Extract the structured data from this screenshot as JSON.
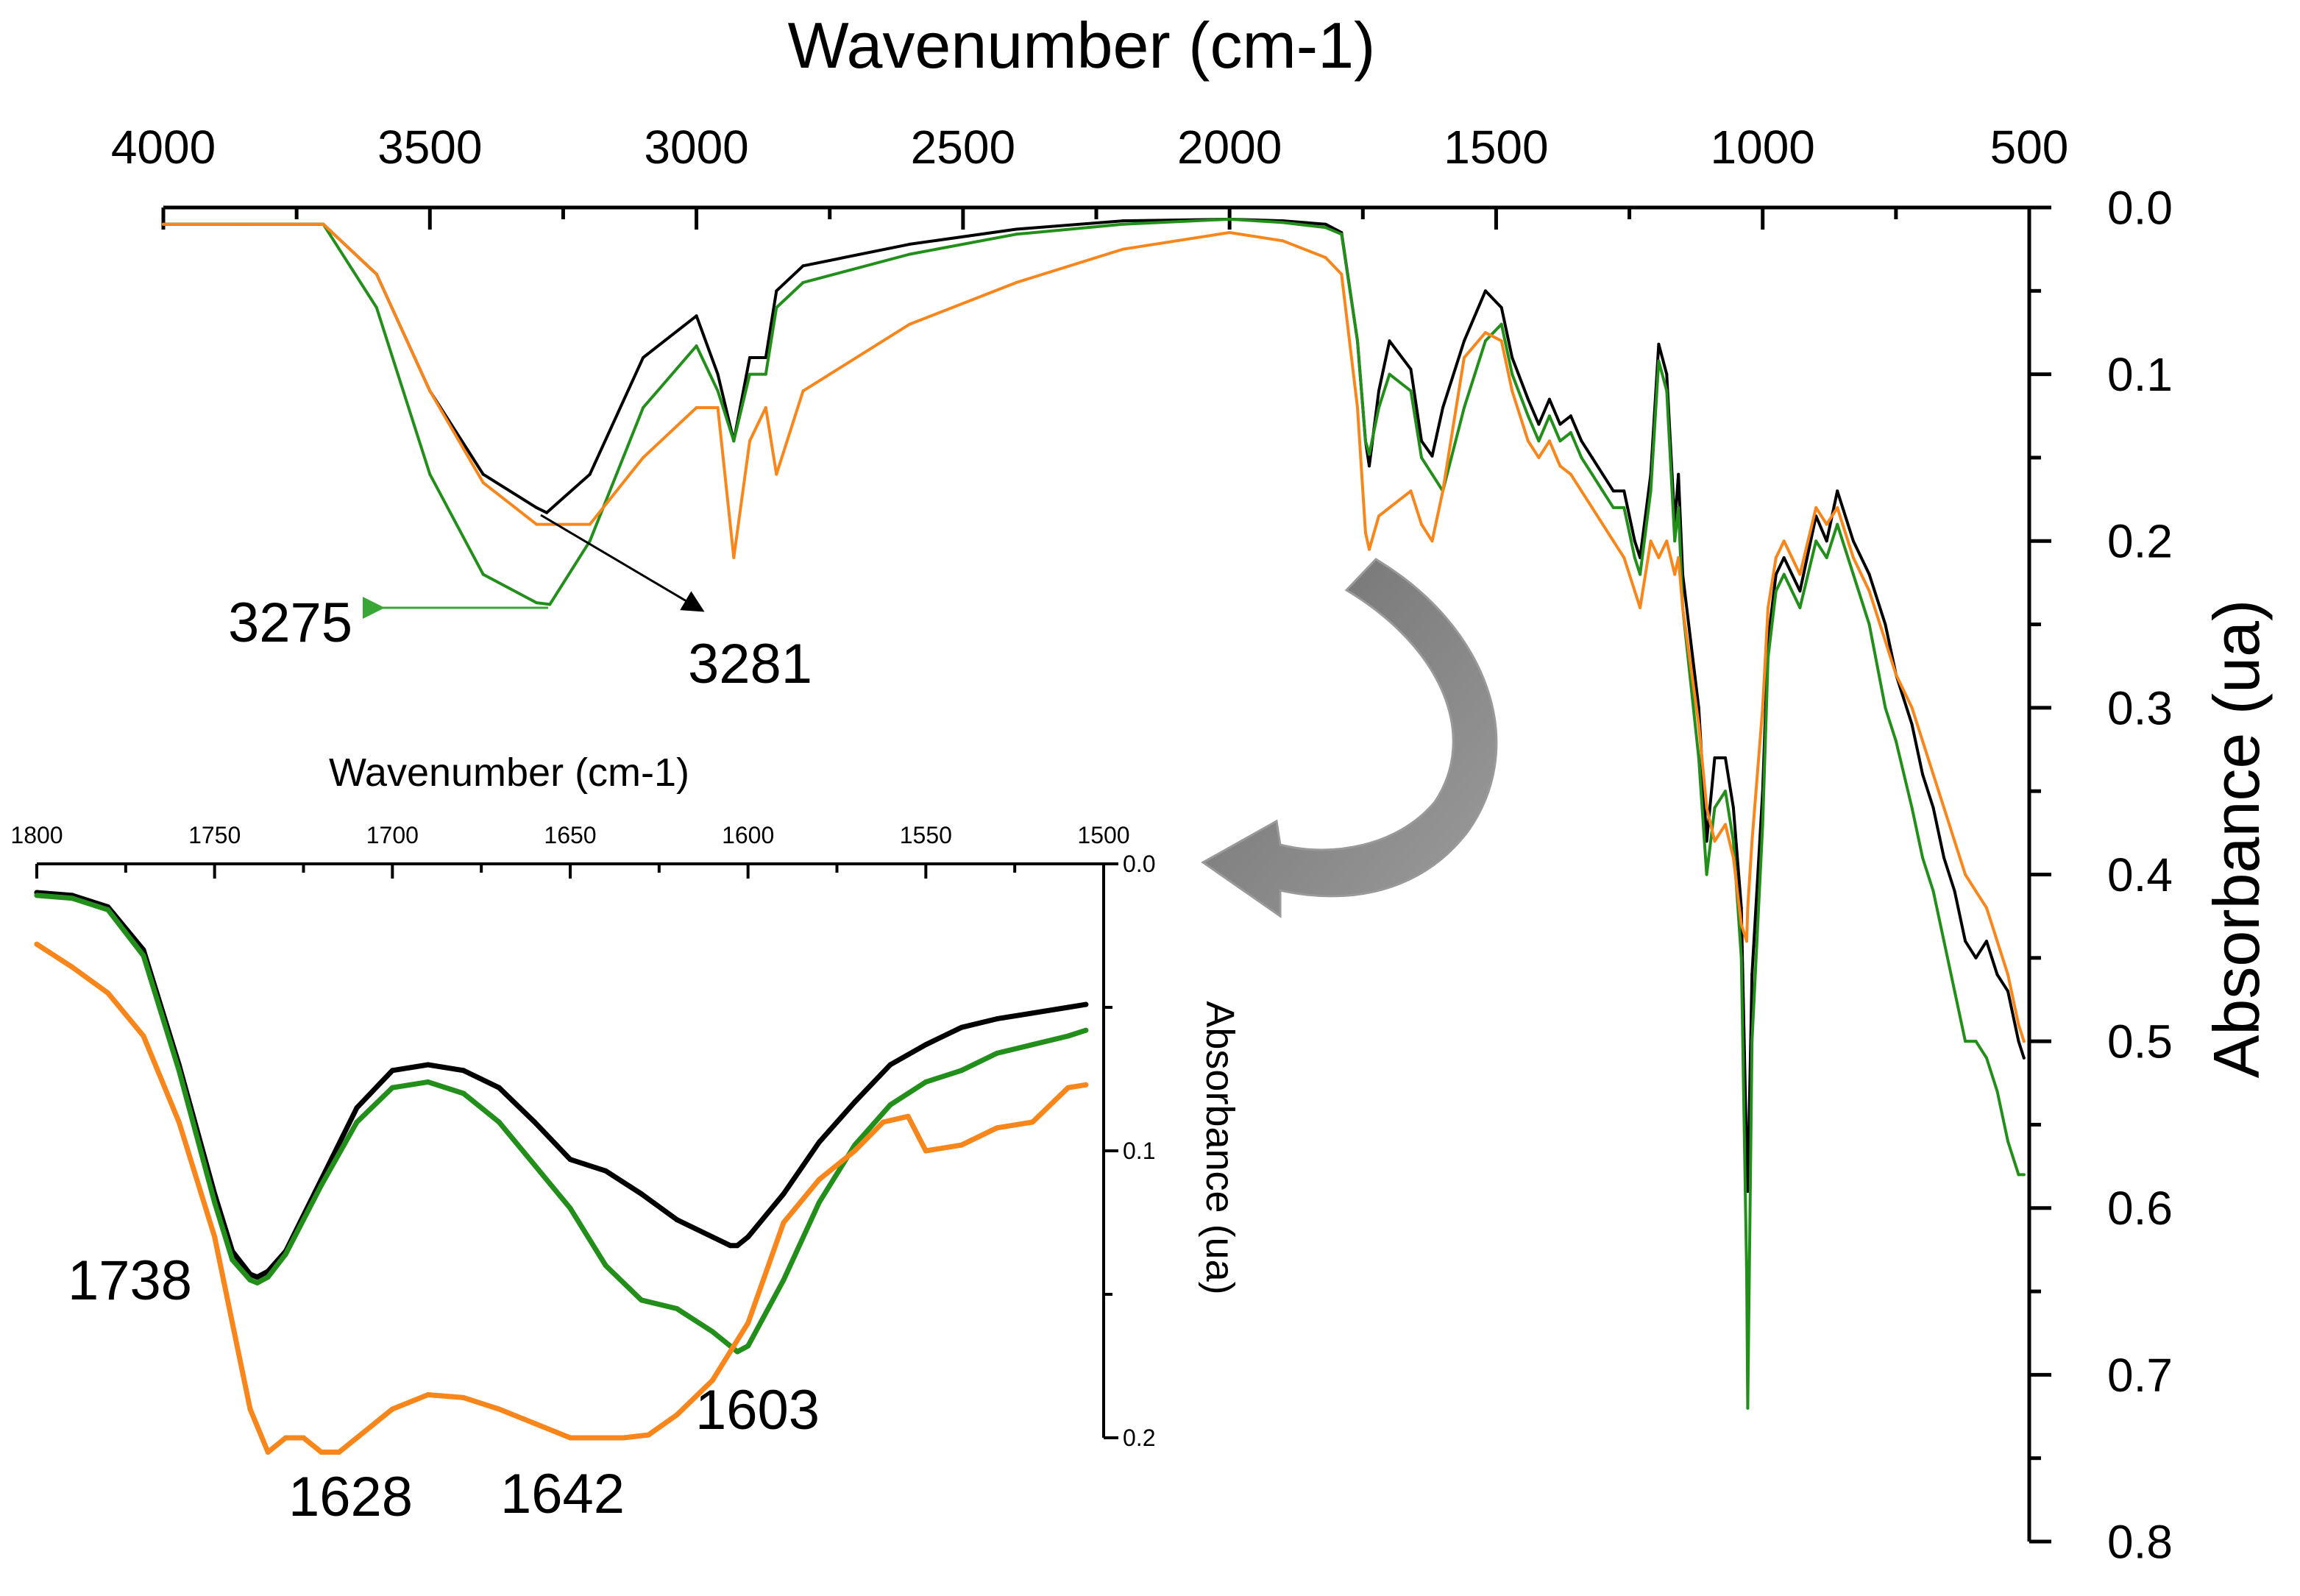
{
  "chart_data": [
    {
      "type": "line",
      "title": "",
      "xlabel": "Wavenumber (cm-1)",
      "ylabel": "Absorbance (ua)",
      "xlim": [
        4000,
        500
      ],
      "ylim": [
        0,
        0.8
      ],
      "x_ticks": [
        4000,
        3500,
        3000,
        2500,
        2000,
        1500,
        1000,
        500
      ],
      "y_ticks": [
        "0.0",
        "0.1",
        "0.2",
        "0.3",
        "0.4",
        "0.5",
        "0.6",
        "0.7",
        "0.8"
      ],
      "x_axis_position": "top",
      "y_axis_position": "right",
      "y_inverted": true,
      "grid": false,
      "series": [
        {
          "name": "black",
          "color": "#000000",
          "x": [
            4000,
            3850,
            3700,
            3600,
            3500,
            3400,
            3300,
            3281,
            3200,
            3100,
            3000,
            2960,
            2930,
            2900,
            2870,
            2850,
            2800,
            2600,
            2400,
            2200,
            2000,
            1900,
            1820,
            1790,
            1760,
            1745,
            1738,
            1720,
            1700,
            1660,
            1640,
            1620,
            1600,
            1560,
            1520,
            1490,
            1470,
            1440,
            1420,
            1400,
            1380,
            1360,
            1340,
            1320,
            1300,
            1280,
            1260,
            1240,
            1230,
            1210,
            1195,
            1180,
            1165,
            1158,
            1150,
            1120,
            1105,
            1090,
            1070,
            1055,
            1040,
            1030,
            1028,
            1020,
            1000,
            990,
            975,
            960,
            930,
            900,
            880,
            860,
            850,
            830,
            800,
            770,
            750,
            720,
            700,
            680,
            660,
            640,
            620,
            600,
            580,
            560,
            540,
            520,
            510
          ],
          "y": [
            0.01,
            0.01,
            0.01,
            0.04,
            0.11,
            0.16,
            0.18,
            0.183,
            0.16,
            0.09,
            0.065,
            0.1,
            0.14,
            0.09,
            0.09,
            0.05,
            0.035,
            0.022,
            0.013,
            0.008,
            0.007,
            0.008,
            0.01,
            0.015,
            0.08,
            0.14,
            0.155,
            0.11,
            0.08,
            0.097,
            0.14,
            0.149,
            0.12,
            0.08,
            0.05,
            0.06,
            0.09,
            0.115,
            0.13,
            0.115,
            0.13,
            0.125,
            0.14,
            0.15,
            0.16,
            0.17,
            0.17,
            0.2,
            0.21,
            0.16,
            0.082,
            0.1,
            0.19,
            0.16,
            0.22,
            0.3,
            0.38,
            0.33,
            0.33,
            0.36,
            0.42,
            0.57,
            0.59,
            0.46,
            0.35,
            0.26,
            0.22,
            0.21,
            0.23,
            0.185,
            0.2,
            0.17,
            0.18,
            0.2,
            0.22,
            0.25,
            0.28,
            0.31,
            0.34,
            0.36,
            0.39,
            0.41,
            0.44,
            0.45,
            0.44,
            0.46,
            0.47,
            0.5,
            0.51
          ]
        },
        {
          "name": "green",
          "color": "#238f1b",
          "x": [
            4000,
            3850,
            3700,
            3600,
            3500,
            3400,
            3300,
            3275,
            3200,
            3100,
            3000,
            2960,
            2930,
            2900,
            2870,
            2850,
            2800,
            2600,
            2400,
            2200,
            2000,
            1900,
            1820,
            1790,
            1760,
            1745,
            1738,
            1720,
            1700,
            1660,
            1640,
            1620,
            1600,
            1560,
            1520,
            1490,
            1470,
            1440,
            1420,
            1400,
            1380,
            1360,
            1340,
            1320,
            1300,
            1280,
            1260,
            1240,
            1230,
            1210,
            1195,
            1180,
            1165,
            1158,
            1150,
            1120,
            1105,
            1090,
            1070,
            1055,
            1040,
            1030,
            1028,
            1020,
            1000,
            990,
            975,
            960,
            930,
            900,
            880,
            860,
            850,
            830,
            800,
            770,
            750,
            720,
            700,
            680,
            660,
            640,
            620,
            600,
            580,
            560,
            540,
            520,
            510
          ],
          "y": [
            0.01,
            0.01,
            0.01,
            0.06,
            0.16,
            0.22,
            0.237,
            0.238,
            0.2,
            0.12,
            0.083,
            0.11,
            0.14,
            0.1,
            0.1,
            0.06,
            0.045,
            0.028,
            0.016,
            0.01,
            0.007,
            0.009,
            0.012,
            0.016,
            0.08,
            0.14,
            0.148,
            0.12,
            0.1,
            0.11,
            0.15,
            0.16,
            0.17,
            0.12,
            0.08,
            0.07,
            0.1,
            0.125,
            0.14,
            0.125,
            0.14,
            0.135,
            0.15,
            0.16,
            0.17,
            0.18,
            0.18,
            0.21,
            0.22,
            0.17,
            0.092,
            0.11,
            0.2,
            0.18,
            0.24,
            0.33,
            0.4,
            0.36,
            0.35,
            0.38,
            0.45,
            0.64,
            0.72,
            0.5,
            0.37,
            0.27,
            0.23,
            0.22,
            0.24,
            0.2,
            0.21,
            0.19,
            0.2,
            0.22,
            0.25,
            0.3,
            0.32,
            0.36,
            0.39,
            0.41,
            0.44,
            0.47,
            0.5,
            0.5,
            0.51,
            0.53,
            0.56,
            0.58,
            0.58
          ]
        },
        {
          "name": "orange",
          "color": "#f8861a",
          "x": [
            4000,
            3850,
            3700,
            3600,
            3500,
            3400,
            3300,
            3200,
            3100,
            3000,
            2960,
            2930,
            2900,
            2870,
            2850,
            2800,
            2600,
            2400,
            2200,
            2000,
            1900,
            1820,
            1790,
            1760,
            1745,
            1738,
            1720,
            1700,
            1660,
            1640,
            1620,
            1600,
            1560,
            1520,
            1490,
            1470,
            1440,
            1420,
            1400,
            1380,
            1360,
            1340,
            1320,
            1300,
            1280,
            1260,
            1240,
            1230,
            1210,
            1195,
            1180,
            1165,
            1158,
            1150,
            1120,
            1105,
            1090,
            1070,
            1055,
            1040,
            1030,
            1028,
            1020,
            1000,
            990,
            975,
            960,
            930,
            900,
            880,
            860,
            850,
            830,
            800,
            770,
            750,
            720,
            700,
            680,
            660,
            640,
            620,
            600,
            580,
            560,
            540,
            520,
            510
          ],
          "y": [
            0.01,
            0.01,
            0.01,
            0.04,
            0.11,
            0.165,
            0.19,
            0.19,
            0.15,
            0.12,
            0.12,
            0.21,
            0.14,
            0.12,
            0.16,
            0.11,
            0.07,
            0.045,
            0.025,
            0.015,
            0.02,
            0.03,
            0.04,
            0.12,
            0.195,
            0.205,
            0.185,
            0.18,
            0.17,
            0.19,
            0.2,
            0.17,
            0.09,
            0.075,
            0.08,
            0.11,
            0.14,
            0.15,
            0.14,
            0.155,
            0.16,
            0.17,
            0.18,
            0.19,
            0.2,
            0.21,
            0.23,
            0.24,
            0.2,
            0.21,
            0.2,
            0.22,
            0.21,
            0.24,
            0.31,
            0.36,
            0.38,
            0.37,
            0.39,
            0.43,
            0.44,
            0.42,
            0.38,
            0.3,
            0.24,
            0.21,
            0.2,
            0.22,
            0.18,
            0.19,
            0.18,
            0.19,
            0.21,
            0.23,
            0.26,
            0.28,
            0.3,
            0.32,
            0.34,
            0.36,
            0.38,
            0.4,
            0.41,
            0.42,
            0.44,
            0.46,
            0.49,
            0.5
          ]
        }
      ],
      "annotations": [
        {
          "text": "3275",
          "arrow": "left",
          "color": "#3aa635"
        },
        {
          "text": "3281",
          "arrow": "down-right",
          "color": "#000000"
        }
      ]
    },
    {
      "type": "line",
      "title": "",
      "xlabel": "Wavenumber (cm-1)",
      "ylabel": "Absorbance (ua)",
      "xlim": [
        1800,
        1500
      ],
      "ylim": [
        0,
        0.2
      ],
      "x_ticks": [
        "1800",
        "1750",
        "1700",
        "1650",
        "1600",
        "1550",
        "1500"
      ],
      "y_ticks": [
        "0.0",
        "0.1",
        "0.2"
      ],
      "x_axis_position": "top",
      "y_axis_position": "right",
      "y_inverted": true,
      "grid": false,
      "series": [
        {
          "name": "black",
          "color": "#000000",
          "x": [
            1800,
            1790,
            1780,
            1770,
            1760,
            1750,
            1745,
            1740,
            1738,
            1735,
            1730,
            1720,
            1710,
            1700,
            1690,
            1680,
            1670,
            1660,
            1650,
            1640,
            1630,
            1620,
            1610,
            1605,
            1603,
            1600,
            1590,
            1580,
            1570,
            1560,
            1550,
            1540,
            1530,
            1520,
            1510,
            1505
          ],
          "y": [
            0.01,
            0.011,
            0.015,
            0.03,
            0.07,
            0.115,
            0.135,
            0.143,
            0.144,
            0.142,
            0.135,
            0.11,
            0.085,
            0.072,
            0.07,
            0.072,
            0.078,
            0.09,
            0.103,
            0.107,
            0.115,
            0.124,
            0.13,
            0.133,
            0.133,
            0.13,
            0.115,
            0.097,
            0.083,
            0.07,
            0.063,
            0.057,
            0.054,
            0.052,
            0.05,
            0.049
          ]
        },
        {
          "name": "green",
          "color": "#238f1b",
          "x": [
            1800,
            1790,
            1780,
            1770,
            1760,
            1750,
            1745,
            1740,
            1738,
            1735,
            1730,
            1720,
            1710,
            1700,
            1690,
            1680,
            1670,
            1660,
            1650,
            1640,
            1630,
            1620,
            1610,
            1605,
            1603,
            1600,
            1590,
            1580,
            1570,
            1560,
            1550,
            1540,
            1530,
            1520,
            1510,
            1505
          ],
          "y": [
            0.011,
            0.012,
            0.016,
            0.032,
            0.072,
            0.118,
            0.138,
            0.145,
            0.146,
            0.144,
            0.136,
            0.112,
            0.09,
            0.078,
            0.076,
            0.08,
            0.09,
            0.105,
            0.12,
            0.14,
            0.152,
            0.155,
            0.163,
            0.168,
            0.17,
            0.168,
            0.145,
            0.118,
            0.098,
            0.084,
            0.076,
            0.072,
            0.066,
            0.063,
            0.06,
            0.058
          ]
        },
        {
          "name": "orange",
          "color": "#f8861a",
          "x": [
            1800,
            1790,
            1780,
            1770,
            1760,
            1750,
            1745,
            1740,
            1735,
            1730,
            1725,
            1720,
            1715,
            1710,
            1700,
            1690,
            1680,
            1670,
            1660,
            1650,
            1642,
            1635,
            1628,
            1620,
            1610,
            1600,
            1590,
            1580,
            1570,
            1562,
            1555,
            1550,
            1540,
            1530,
            1520,
            1510,
            1505
          ],
          "y": [
            0.028,
            0.036,
            0.045,
            0.06,
            0.09,
            0.13,
            0.16,
            0.19,
            0.205,
            0.2,
            0.2,
            0.205,
            0.205,
            0.2,
            0.19,
            0.185,
            0.186,
            0.19,
            0.195,
            0.2,
            0.2,
            0.2,
            0.199,
            0.192,
            0.18,
            0.16,
            0.125,
            0.11,
            0.1,
            0.09,
            0.088,
            0.1,
            0.098,
            0.092,
            0.09,
            0.078,
            0.077
          ]
        }
      ],
      "annotations": [
        {
          "text": "1738"
        },
        {
          "text": "1628"
        },
        {
          "text": "1642"
        },
        {
          "text": "1603"
        }
      ]
    }
  ]
}
